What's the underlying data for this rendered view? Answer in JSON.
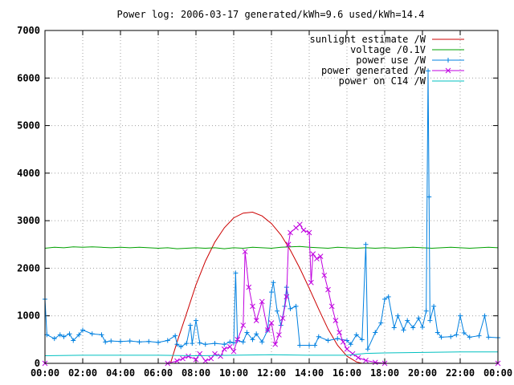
{
  "chart_data": {
    "type": "line",
    "title": "Power log: 2006-03-17 generated/kWh=9.6 used/kWh=14.4",
    "xlabel": "",
    "ylabel": "",
    "xlim": [
      "00:00",
      "24:00"
    ],
    "ylim": [
      0,
      7000
    ],
    "x_ticks": [
      "00:00",
      "02:00",
      "04:00",
      "06:00",
      "08:00",
      "10:00",
      "12:00",
      "14:00",
      "16:00",
      "18:00",
      "20:00",
      "22:00",
      "00:00"
    ],
    "y_ticks": [
      0,
      1000,
      2000,
      3000,
      4000,
      5000,
      6000,
      7000
    ],
    "grid": true,
    "legend_position": "top-right",
    "series": [
      {
        "name": "sunlight estimate /W",
        "color": "#cc0000",
        "marker": "none",
        "points": [
          [
            6.65,
            0
          ],
          [
            7.0,
            450
          ],
          [
            7.5,
            1050
          ],
          [
            8.0,
            1650
          ],
          [
            8.5,
            2150
          ],
          [
            9.0,
            2550
          ],
          [
            9.5,
            2850
          ],
          [
            10.0,
            3060
          ],
          [
            10.5,
            3160
          ],
          [
            11.0,
            3180
          ],
          [
            11.5,
            3100
          ],
          [
            12.0,
            2940
          ],
          [
            12.5,
            2700
          ],
          [
            13.0,
            2380
          ],
          [
            13.5,
            2000
          ],
          [
            14.0,
            1580
          ],
          [
            14.5,
            1140
          ],
          [
            15.0,
            720
          ],
          [
            15.5,
            380
          ],
          [
            16.0,
            150
          ],
          [
            16.5,
            30
          ],
          [
            16.8,
            0
          ]
        ]
      },
      {
        "name": "voltage /0.1V",
        "color": "#00a000",
        "marker": "none",
        "points": [
          [
            0.0,
            2420
          ],
          [
            0.5,
            2440
          ],
          [
            1.0,
            2430
          ],
          [
            1.5,
            2450
          ],
          [
            2.0,
            2440
          ],
          [
            2.5,
            2450
          ],
          [
            3.0,
            2440
          ],
          [
            3.5,
            2430
          ],
          [
            4.0,
            2440
          ],
          [
            4.5,
            2430
          ],
          [
            5.0,
            2440
          ],
          [
            5.5,
            2430
          ],
          [
            6.0,
            2420
          ],
          [
            6.5,
            2430
          ],
          [
            7.0,
            2410
          ],
          [
            7.5,
            2420
          ],
          [
            8.0,
            2430
          ],
          [
            8.5,
            2420
          ],
          [
            9.0,
            2430
          ],
          [
            9.5,
            2410
          ],
          [
            10.0,
            2430
          ],
          [
            10.5,
            2420
          ],
          [
            11.0,
            2440
          ],
          [
            11.5,
            2430
          ],
          [
            12.0,
            2420
          ],
          [
            12.5,
            2440
          ],
          [
            13.0,
            2450
          ],
          [
            13.5,
            2460
          ],
          [
            14.0,
            2440
          ],
          [
            14.5,
            2430
          ],
          [
            15.0,
            2420
          ],
          [
            15.5,
            2440
          ],
          [
            16.0,
            2430
          ],
          [
            16.5,
            2420
          ],
          [
            17.0,
            2430
          ],
          [
            17.5,
            2420
          ],
          [
            18.0,
            2430
          ],
          [
            18.5,
            2420
          ],
          [
            19.0,
            2430
          ],
          [
            19.5,
            2440
          ],
          [
            20.0,
            2430
          ],
          [
            20.5,
            2420
          ],
          [
            21.0,
            2430
          ],
          [
            21.5,
            2440
          ],
          [
            22.0,
            2430
          ],
          [
            22.5,
            2420
          ],
          [
            23.0,
            2430
          ],
          [
            23.5,
            2440
          ],
          [
            24.0,
            2430
          ]
        ]
      },
      {
        "name": "power use /W",
        "color": "#0080e0",
        "marker": "plus",
        "points": [
          [
            0.0,
            1350
          ],
          [
            0.1,
            600
          ],
          [
            0.5,
            520
          ],
          [
            0.8,
            600
          ],
          [
            1.0,
            560
          ],
          [
            1.3,
            620
          ],
          [
            1.5,
            480
          ],
          [
            1.8,
            600
          ],
          [
            2.0,
            700
          ],
          [
            2.5,
            620
          ],
          [
            3.0,
            600
          ],
          [
            3.2,
            450
          ],
          [
            3.5,
            470
          ],
          [
            4.0,
            460
          ],
          [
            4.5,
            470
          ],
          [
            5.0,
            450
          ],
          [
            5.5,
            460
          ],
          [
            6.0,
            440
          ],
          [
            6.5,
            480
          ],
          [
            6.9,
            580
          ],
          [
            7.0,
            400
          ],
          [
            7.2,
            350
          ],
          [
            7.5,
            420
          ],
          [
            7.7,
            800
          ],
          [
            7.8,
            420
          ],
          [
            8.0,
            900
          ],
          [
            8.2,
            430
          ],
          [
            8.5,
            400
          ],
          [
            9.0,
            420
          ],
          [
            9.5,
            400
          ],
          [
            9.8,
            450
          ],
          [
            10.0,
            430
          ],
          [
            10.1,
            1900
          ],
          [
            10.2,
            480
          ],
          [
            10.5,
            450
          ],
          [
            10.7,
            650
          ],
          [
            11.0,
            500
          ],
          [
            11.2,
            620
          ],
          [
            11.5,
            450
          ],
          [
            11.8,
            700
          ],
          [
            12.0,
            1500
          ],
          [
            12.1,
            1700
          ],
          [
            12.3,
            1100
          ],
          [
            12.5,
            800
          ],
          [
            12.7,
            1200
          ],
          [
            12.8,
            1600
          ],
          [
            13.0,
            1150
          ],
          [
            13.3,
            1200
          ],
          [
            13.5,
            380
          ],
          [
            14.0,
            380
          ],
          [
            14.3,
            380
          ],
          [
            14.5,
            560
          ],
          [
            15.0,
            480
          ],
          [
            15.5,
            520
          ],
          [
            16.0,
            480
          ],
          [
            16.2,
            400
          ],
          [
            16.5,
            600
          ],
          [
            16.8,
            500
          ],
          [
            17.0,
            2500
          ],
          [
            17.1,
            300
          ],
          [
            17.5,
            650
          ],
          [
            17.8,
            850
          ],
          [
            18.0,
            1350
          ],
          [
            18.2,
            1400
          ],
          [
            18.5,
            750
          ],
          [
            18.7,
            1000
          ],
          [
            19.0,
            700
          ],
          [
            19.2,
            900
          ],
          [
            19.5,
            750
          ],
          [
            19.8,
            950
          ],
          [
            20.0,
            760
          ],
          [
            20.2,
            1100
          ],
          [
            20.3,
            6150
          ],
          [
            20.35,
            3500
          ],
          [
            20.4,
            900
          ],
          [
            20.6,
            1200
          ],
          [
            20.8,
            650
          ],
          [
            21.0,
            550
          ],
          [
            21.5,
            560
          ],
          [
            21.8,
            600
          ],
          [
            22.0,
            1000
          ],
          [
            22.2,
            640
          ],
          [
            22.5,
            550
          ],
          [
            23.0,
            580
          ],
          [
            23.3,
            1000
          ],
          [
            23.5,
            550
          ],
          [
            24.0,
            540
          ]
        ]
      },
      {
        "name": "power generated /W",
        "color": "#c000e0",
        "marker": "cross",
        "points": [
          [
            0.0,
            0
          ],
          [
            6.5,
            0
          ],
          [
            7.0,
            50
          ],
          [
            7.3,
            100
          ],
          [
            7.6,
            150
          ],
          [
            8.0,
            80
          ],
          [
            8.2,
            200
          ],
          [
            8.5,
            50
          ],
          [
            8.8,
            100
          ],
          [
            9.0,
            200
          ],
          [
            9.3,
            150
          ],
          [
            9.5,
            300
          ],
          [
            9.8,
            350
          ],
          [
            10.0,
            250
          ],
          [
            10.2,
            500
          ],
          [
            10.5,
            800
          ],
          [
            10.6,
            2350
          ],
          [
            10.8,
            1600
          ],
          [
            11.0,
            1200
          ],
          [
            11.2,
            900
          ],
          [
            11.5,
            1300
          ],
          [
            11.8,
            700
          ],
          [
            12.0,
            850
          ],
          [
            12.2,
            400
          ],
          [
            12.4,
            600
          ],
          [
            12.6,
            950
          ],
          [
            12.8,
            1400
          ],
          [
            12.9,
            2500
          ],
          [
            13.0,
            2750
          ],
          [
            13.3,
            2850
          ],
          [
            13.5,
            2920
          ],
          [
            13.7,
            2800
          ],
          [
            14.0,
            2750
          ],
          [
            14.1,
            1700
          ],
          [
            14.2,
            2300
          ],
          [
            14.4,
            2200
          ],
          [
            14.6,
            2250
          ],
          [
            14.8,
            1850
          ],
          [
            15.0,
            1550
          ],
          [
            15.2,
            1200
          ],
          [
            15.4,
            900
          ],
          [
            15.6,
            650
          ],
          [
            15.8,
            450
          ],
          [
            16.0,
            300
          ],
          [
            16.3,
            200
          ],
          [
            16.6,
            120
          ],
          [
            17.0,
            60
          ],
          [
            17.5,
            20
          ],
          [
            18.0,
            0
          ],
          [
            24.0,
            0
          ]
        ]
      },
      {
        "name": "power on C14 /W",
        "color": "#00c0c0",
        "marker": "none",
        "points": [
          [
            0.0,
            160
          ],
          [
            2.0,
            170
          ],
          [
            4.0,
            170
          ],
          [
            6.0,
            170
          ],
          [
            8.0,
            160
          ],
          [
            10.0,
            170
          ],
          [
            12.0,
            180
          ],
          [
            14.0,
            170
          ],
          [
            16.0,
            170
          ],
          [
            17.0,
            210
          ],
          [
            18.0,
            220
          ],
          [
            20.0,
            230
          ],
          [
            22.0,
            240
          ],
          [
            24.0,
            240
          ]
        ]
      }
    ]
  }
}
